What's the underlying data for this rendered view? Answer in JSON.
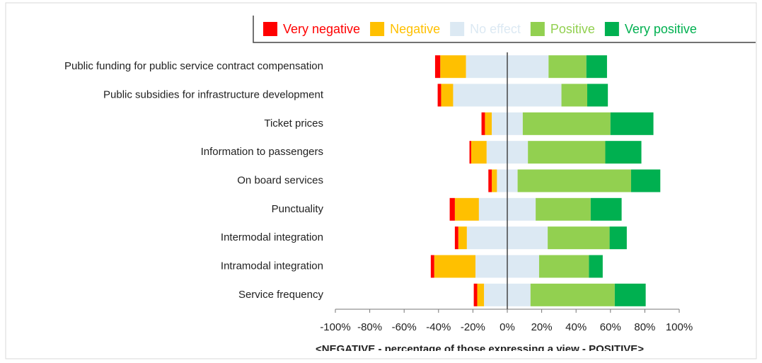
{
  "chart_data": {
    "type": "diverging_stacked_bar",
    "categories": [
      "Public funding for public service contract compensation",
      "Public subsidies for infrastructure development",
      "Ticket prices",
      "Information to passengers",
      "On board services",
      "Punctuality",
      "Intermodal integration",
      "Intramodal integration",
      "Service frequency"
    ],
    "series": [
      {
        "name": "Very negative",
        "color": "#ff0000",
        "side": "negative",
        "values": [
          3,
          2,
          2,
          1,
          2,
          3,
          2,
          2,
          2
        ]
      },
      {
        "name": "Negative",
        "color": "#ffc000",
        "side": "negative",
        "values": [
          15,
          7,
          4,
          9,
          3,
          14,
          5,
          24,
          4
        ]
      },
      {
        "name": "No effect",
        "color": "#dce9f3",
        "side": "center",
        "values": [
          48,
          63,
          18,
          24,
          12,
          33,
          47,
          37,
          27
        ]
      },
      {
        "name": "Positive",
        "color": "#92d050",
        "side": "positive",
        "values": [
          22,
          15,
          51,
          45,
          66,
          32,
          36,
          29,
          49
        ]
      },
      {
        "name": "Very positive",
        "color": "#00b050",
        "side": "positive",
        "values": [
          12,
          12,
          25,
          21,
          17,
          18,
          10,
          8,
          18
        ]
      }
    ],
    "xlim": [
      -100,
      100
    ],
    "xticks": [
      {
        "value": -100,
        "label": "-100%"
      },
      {
        "value": -80,
        "label": "-80%"
      },
      {
        "value": -60,
        "label": "-60%"
      },
      {
        "value": -40,
        "label": "-40%"
      },
      {
        "value": -20,
        "label": "-20%"
      },
      {
        "value": 0,
        "label": "0%"
      },
      {
        "value": 20,
        "label": "20%"
      },
      {
        "value": 40,
        "label": "40%"
      },
      {
        "value": 60,
        "label": "60%"
      },
      {
        "value": 80,
        "label": "80%"
      },
      {
        "value": 100,
        "label": "100%"
      }
    ],
    "x_label": "<NEGATIVE  -  percentage of those expressing a view  -  POSITIVE>"
  }
}
